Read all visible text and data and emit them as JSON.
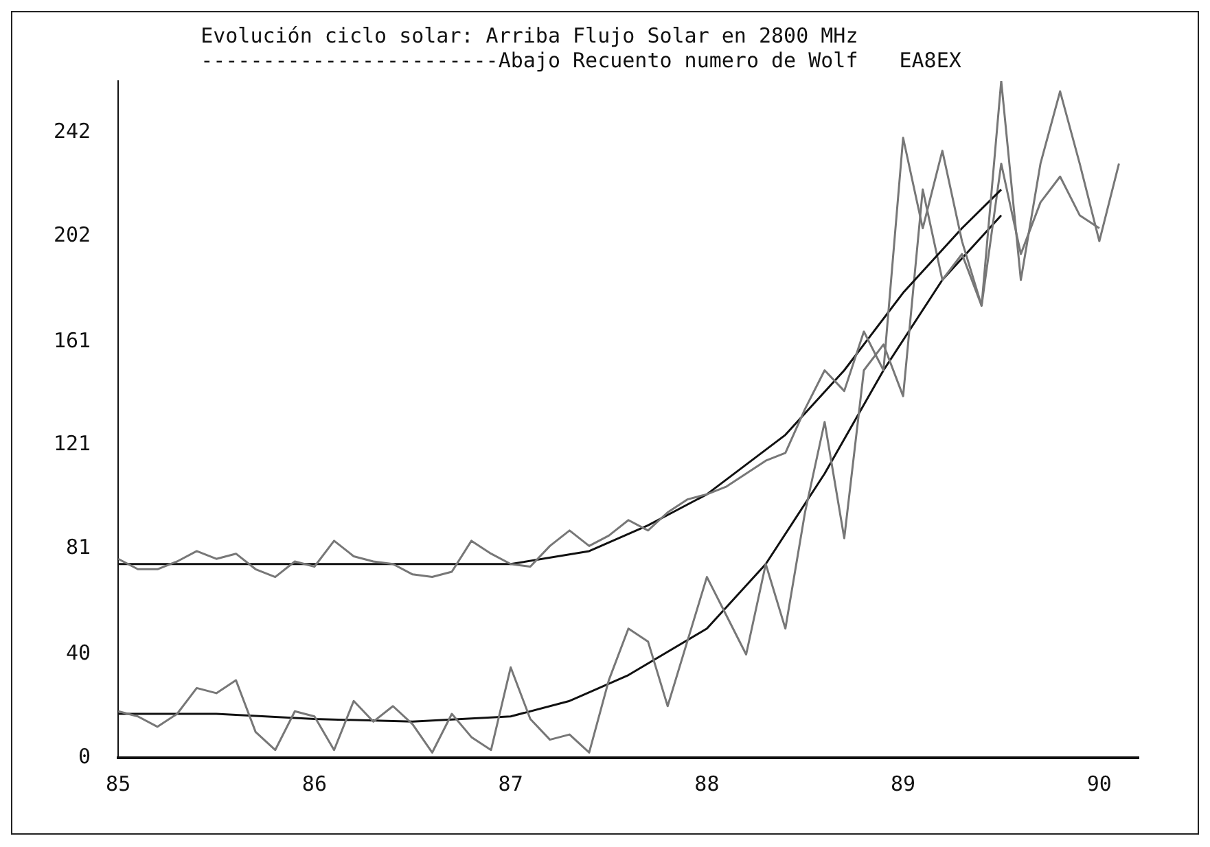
{
  "chart_data": {
    "type": "line",
    "title": "Evolución ciclo solar: Arriba Flujo Solar en 2800 MHz",
    "subtitle": "------------------------Abajo Recuento numero de Wolf",
    "annotations": [
      "EA8EX"
    ],
    "xlim": [
      85,
      90.2
    ],
    "xticks": [
      85,
      86,
      87,
      88,
      89,
      90
    ],
    "ylim": [
      0,
      262
    ],
    "yticks": [
      0,
      40,
      81,
      121,
      161,
      202,
      242
    ],
    "grid": false,
    "legend": false,
    "marker": "none",
    "series": [
      {
        "color": "#777777",
        "x": [
          85.0,
          85.1,
          85.2,
          85.3,
          85.4,
          85.5,
          85.6,
          85.7,
          85.8,
          85.9,
          86.0,
          86.1,
          86.2,
          86.3,
          86.4,
          86.5,
          86.6,
          86.7,
          86.8,
          86.9,
          87.0,
          87.1,
          87.2,
          87.3,
          87.4,
          87.5,
          87.6,
          87.7,
          87.8,
          87.9,
          88.0,
          88.1,
          88.2,
          88.3,
          88.4,
          88.5,
          88.6,
          88.7,
          88.8,
          88.9,
          89.0,
          89.1,
          89.2,
          89.3,
          89.4,
          89.5,
          89.6,
          89.7,
          89.8,
          89.9,
          90.0,
          90.1
        ],
        "values": [
          77,
          73,
          73,
          76,
          80,
          77,
          79,
          73,
          70,
          76,
          74,
          84,
          78,
          76,
          75,
          71,
          70,
          72,
          84,
          79,
          75,
          74,
          82,
          88,
          82,
          86,
          92,
          88,
          95,
          100,
          102,
          105,
          110,
          115,
          118,
          135,
          150,
          142,
          165,
          150,
          240,
          205,
          235,
          200,
          175,
          262,
          185,
          230,
          258,
          230,
          200,
          230
        ]
      },
      {
        "color": "#111111",
        "x": [
          85.0,
          85.5,
          86.0,
          86.5,
          87.0,
          87.4,
          87.7,
          88.0,
          88.4,
          88.7,
          89.0,
          89.3,
          89.5
        ],
        "values": [
          75,
          75,
          75,
          75,
          75,
          80,
          90,
          102,
          125,
          150,
          180,
          205,
          220
        ]
      },
      {
        "color": "#777777",
        "x": [
          85.0,
          85.1,
          85.2,
          85.3,
          85.4,
          85.5,
          85.6,
          85.7,
          85.8,
          85.9,
          86.0,
          86.1,
          86.2,
          86.3,
          86.4,
          86.5,
          86.6,
          86.7,
          86.8,
          86.9,
          87.0,
          87.1,
          87.2,
          87.3,
          87.4,
          87.5,
          87.6,
          87.7,
          87.8,
          87.9,
          88.0,
          88.1,
          88.2,
          88.3,
          88.4,
          88.5,
          88.6,
          88.7,
          88.8,
          88.9,
          89.0,
          89.1,
          89.2,
          89.3,
          89.4,
          89.5,
          89.6,
          89.7,
          89.8,
          89.9,
          90.0
        ],
        "values": [
          18,
          16,
          12,
          17,
          27,
          25,
          30,
          10,
          3,
          18,
          16,
          3,
          22,
          14,
          20,
          13,
          2,
          17,
          8,
          3,
          35,
          15,
          7,
          9,
          2,
          30,
          50,
          45,
          20,
          45,
          70,
          55,
          40,
          75,
          50,
          95,
          130,
          85,
          150,
          160,
          140,
          220,
          185,
          195,
          175,
          230,
          195,
          215,
          225,
          210,
          205
        ]
      },
      {
        "color": "#111111",
        "x": [
          85.0,
          85.5,
          86.0,
          86.5,
          87.0,
          87.3,
          87.6,
          88.0,
          88.3,
          88.6,
          88.9,
          89.2,
          89.5
        ],
        "values": [
          17,
          17,
          15,
          14,
          16,
          22,
          32,
          50,
          75,
          110,
          150,
          185,
          210
        ]
      }
    ]
  }
}
